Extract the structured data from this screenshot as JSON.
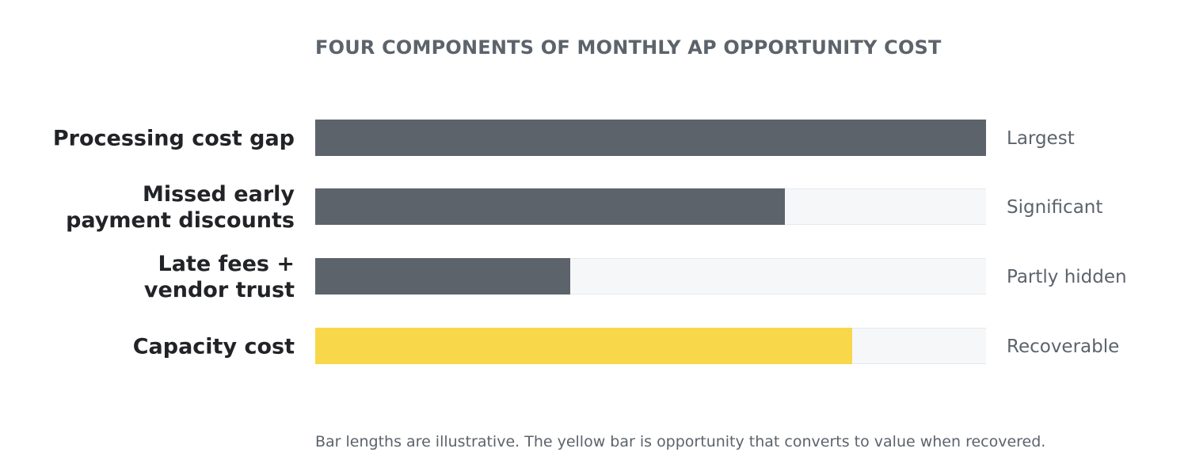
{
  "chart_data": {
    "type": "bar",
    "orientation": "horizontal",
    "title": "FOUR COMPONENTS OF MONTHLY AP OPPORTUNITY COST",
    "categories": [
      [
        "Processing cost gap"
      ],
      [
        "Missed early",
        "payment discounts"
      ],
      [
        "Late fees +",
        "vendor trust"
      ],
      [
        "Capacity cost"
      ]
    ],
    "values": [
      100,
      70,
      38,
      80
    ],
    "value_labels": [
      "Largest",
      "Significant",
      "Partly hidden",
      "Recoverable"
    ],
    "bar_colors": [
      "#5d636b",
      "#5d636b",
      "#5d636b",
      "#f8d84a"
    ],
    "xlim": [
      0,
      100
    ],
    "grid": false,
    "legend": "none",
    "footnote": "Bar lengths are illustrative. The yellow bar is opportunity that converts to value when recovered."
  }
}
